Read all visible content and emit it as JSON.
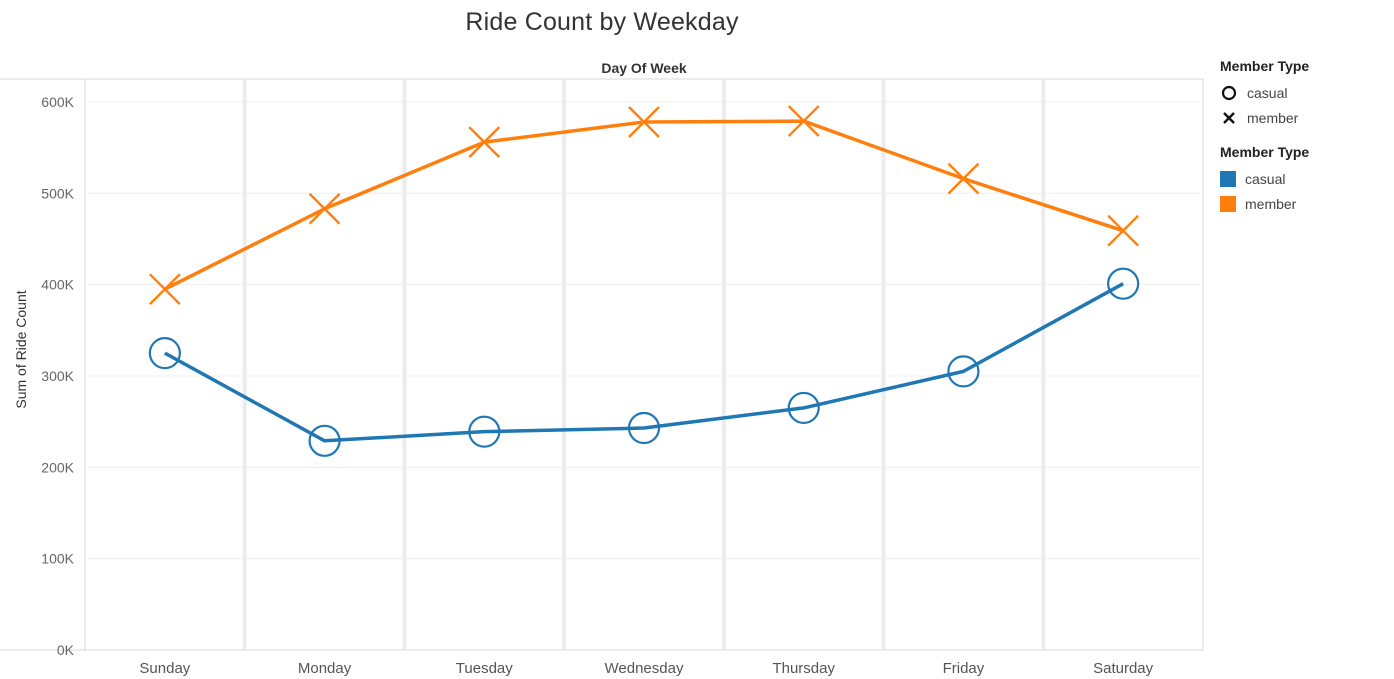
{
  "chart_data": {
    "type": "line",
    "title": "Ride Count by Weekday",
    "column_header": "Day Of Week",
    "ylabel": "Sum of Ride Count",
    "xlabel": "",
    "ylim": [
      0,
      620000
    ],
    "y_ticks": [
      0,
      100000,
      200000,
      300000,
      400000,
      500000,
      600000
    ],
    "y_tick_labels": [
      "0K",
      "100K",
      "200K",
      "300K",
      "400K",
      "500K",
      "600K"
    ],
    "categories": [
      "Sunday",
      "Monday",
      "Tuesday",
      "Wednesday",
      "Thursday",
      "Friday",
      "Saturday"
    ],
    "grid": true,
    "series": [
      {
        "name": "casual",
        "color": "#1f77b4",
        "shape": "circle",
        "values": [
          325000,
          229000,
          239000,
          243000,
          265000,
          305000,
          401000
        ]
      },
      {
        "name": "member",
        "color": "#ff7f0e",
        "shape": "x",
        "values": [
          395000,
          483000,
          556000,
          578000,
          579000,
          516000,
          459000
        ]
      }
    ],
    "legends": [
      {
        "title": "Member Type",
        "kind": "shape",
        "items": [
          {
            "label": "casual",
            "shape": "circle"
          },
          {
            "label": "member",
            "shape": "x"
          }
        ]
      },
      {
        "title": "Member Type",
        "kind": "color",
        "items": [
          {
            "label": "casual",
            "color": "#1f77b4"
          },
          {
            "label": "member",
            "color": "#ff7f0e"
          }
        ]
      }
    ]
  }
}
